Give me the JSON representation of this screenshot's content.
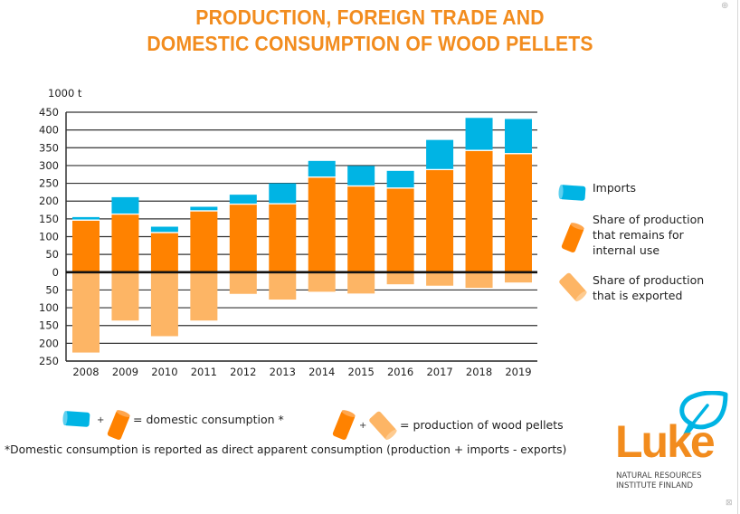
{
  "page": {
    "title_line1": "PRODUCTION, FOREIGN TRADE AND",
    "title_line2": "DOMESTIC CONSUMPTION OF WOOD PELLETS",
    "top_right_icon": "zoom-icon",
    "bottom_right_icon": "close-icon"
  },
  "colors": {
    "title": "#F28C1E",
    "imports": "#00B4E4",
    "internal_use": "#FF8200",
    "exported": "#FDB565",
    "grid": "#333333",
    "zero_line": "#111111"
  },
  "chart_data": {
    "type": "bar",
    "stacked": true,
    "title": "PRODUCTION, FOREIGN TRADE AND DOMESTIC CONSUMPTION OF WOOD PELLETS",
    "ylabel": "1000 t",
    "xlabel": "",
    "ylim": [
      -250,
      450
    ],
    "yticks": [
      450,
      400,
      350,
      300,
      250,
      200,
      150,
      100,
      50,
      0,
      -50,
      -100,
      -150,
      -200,
      -250
    ],
    "ytick_labels": [
      "450",
      "400",
      "350",
      "300",
      "250",
      "200",
      "150",
      "100",
      "50",
      "0",
      "50",
      "100",
      "150",
      "200",
      "250"
    ],
    "grid": true,
    "legend_position": "right",
    "categories": [
      "2008",
      "2009",
      "2010",
      "2011",
      "2012",
      "2013",
      "2014",
      "2015",
      "2016",
      "2017",
      "2018",
      "2019"
    ],
    "series": [
      {
        "name": "Share of production that remains for internal use",
        "key": "internal_use",
        "values": [
          145,
          162,
          110,
          171,
          190,
          191,
          266,
          241,
          235,
          287,
          341,
          332
        ]
      },
      {
        "name": "Imports",
        "key": "imports",
        "values": [
          10,
          49,
          18,
          13,
          28,
          59,
          47,
          58,
          50,
          85,
          93,
          99
        ]
      },
      {
        "name": "Share of production that is exported",
        "key": "exported",
        "values": [
          -226,
          -136,
          -180,
          -136,
          -61,
          -77,
          -55,
          -60,
          -34,
          -38,
          -44,
          -29
        ]
      }
    ]
  },
  "legend": {
    "items": [
      {
        "label_lines": [
          "Imports"
        ],
        "icon": "blue-pellet-icon"
      },
      {
        "label_lines": [
          "Share of production",
          "that remains for",
          "internal use"
        ],
        "icon": "orange-pellet-icon"
      },
      {
        "label_lines": [
          "Share of production",
          "that is exported"
        ],
        "icon": "light-orange-pellet-icon"
      }
    ]
  },
  "formulas": {
    "plus": "+",
    "domestic": "= domestic consumption *",
    "production": "= production of wood pellets"
  },
  "footnote": "*Domestic consumption is reported as direct apparent consumption (production + imports - exports)",
  "logo": {
    "word": "Luke",
    "sub_line1": "NATURAL RESOURCES",
    "sub_line2": "INSTITUTE FINLAND"
  }
}
